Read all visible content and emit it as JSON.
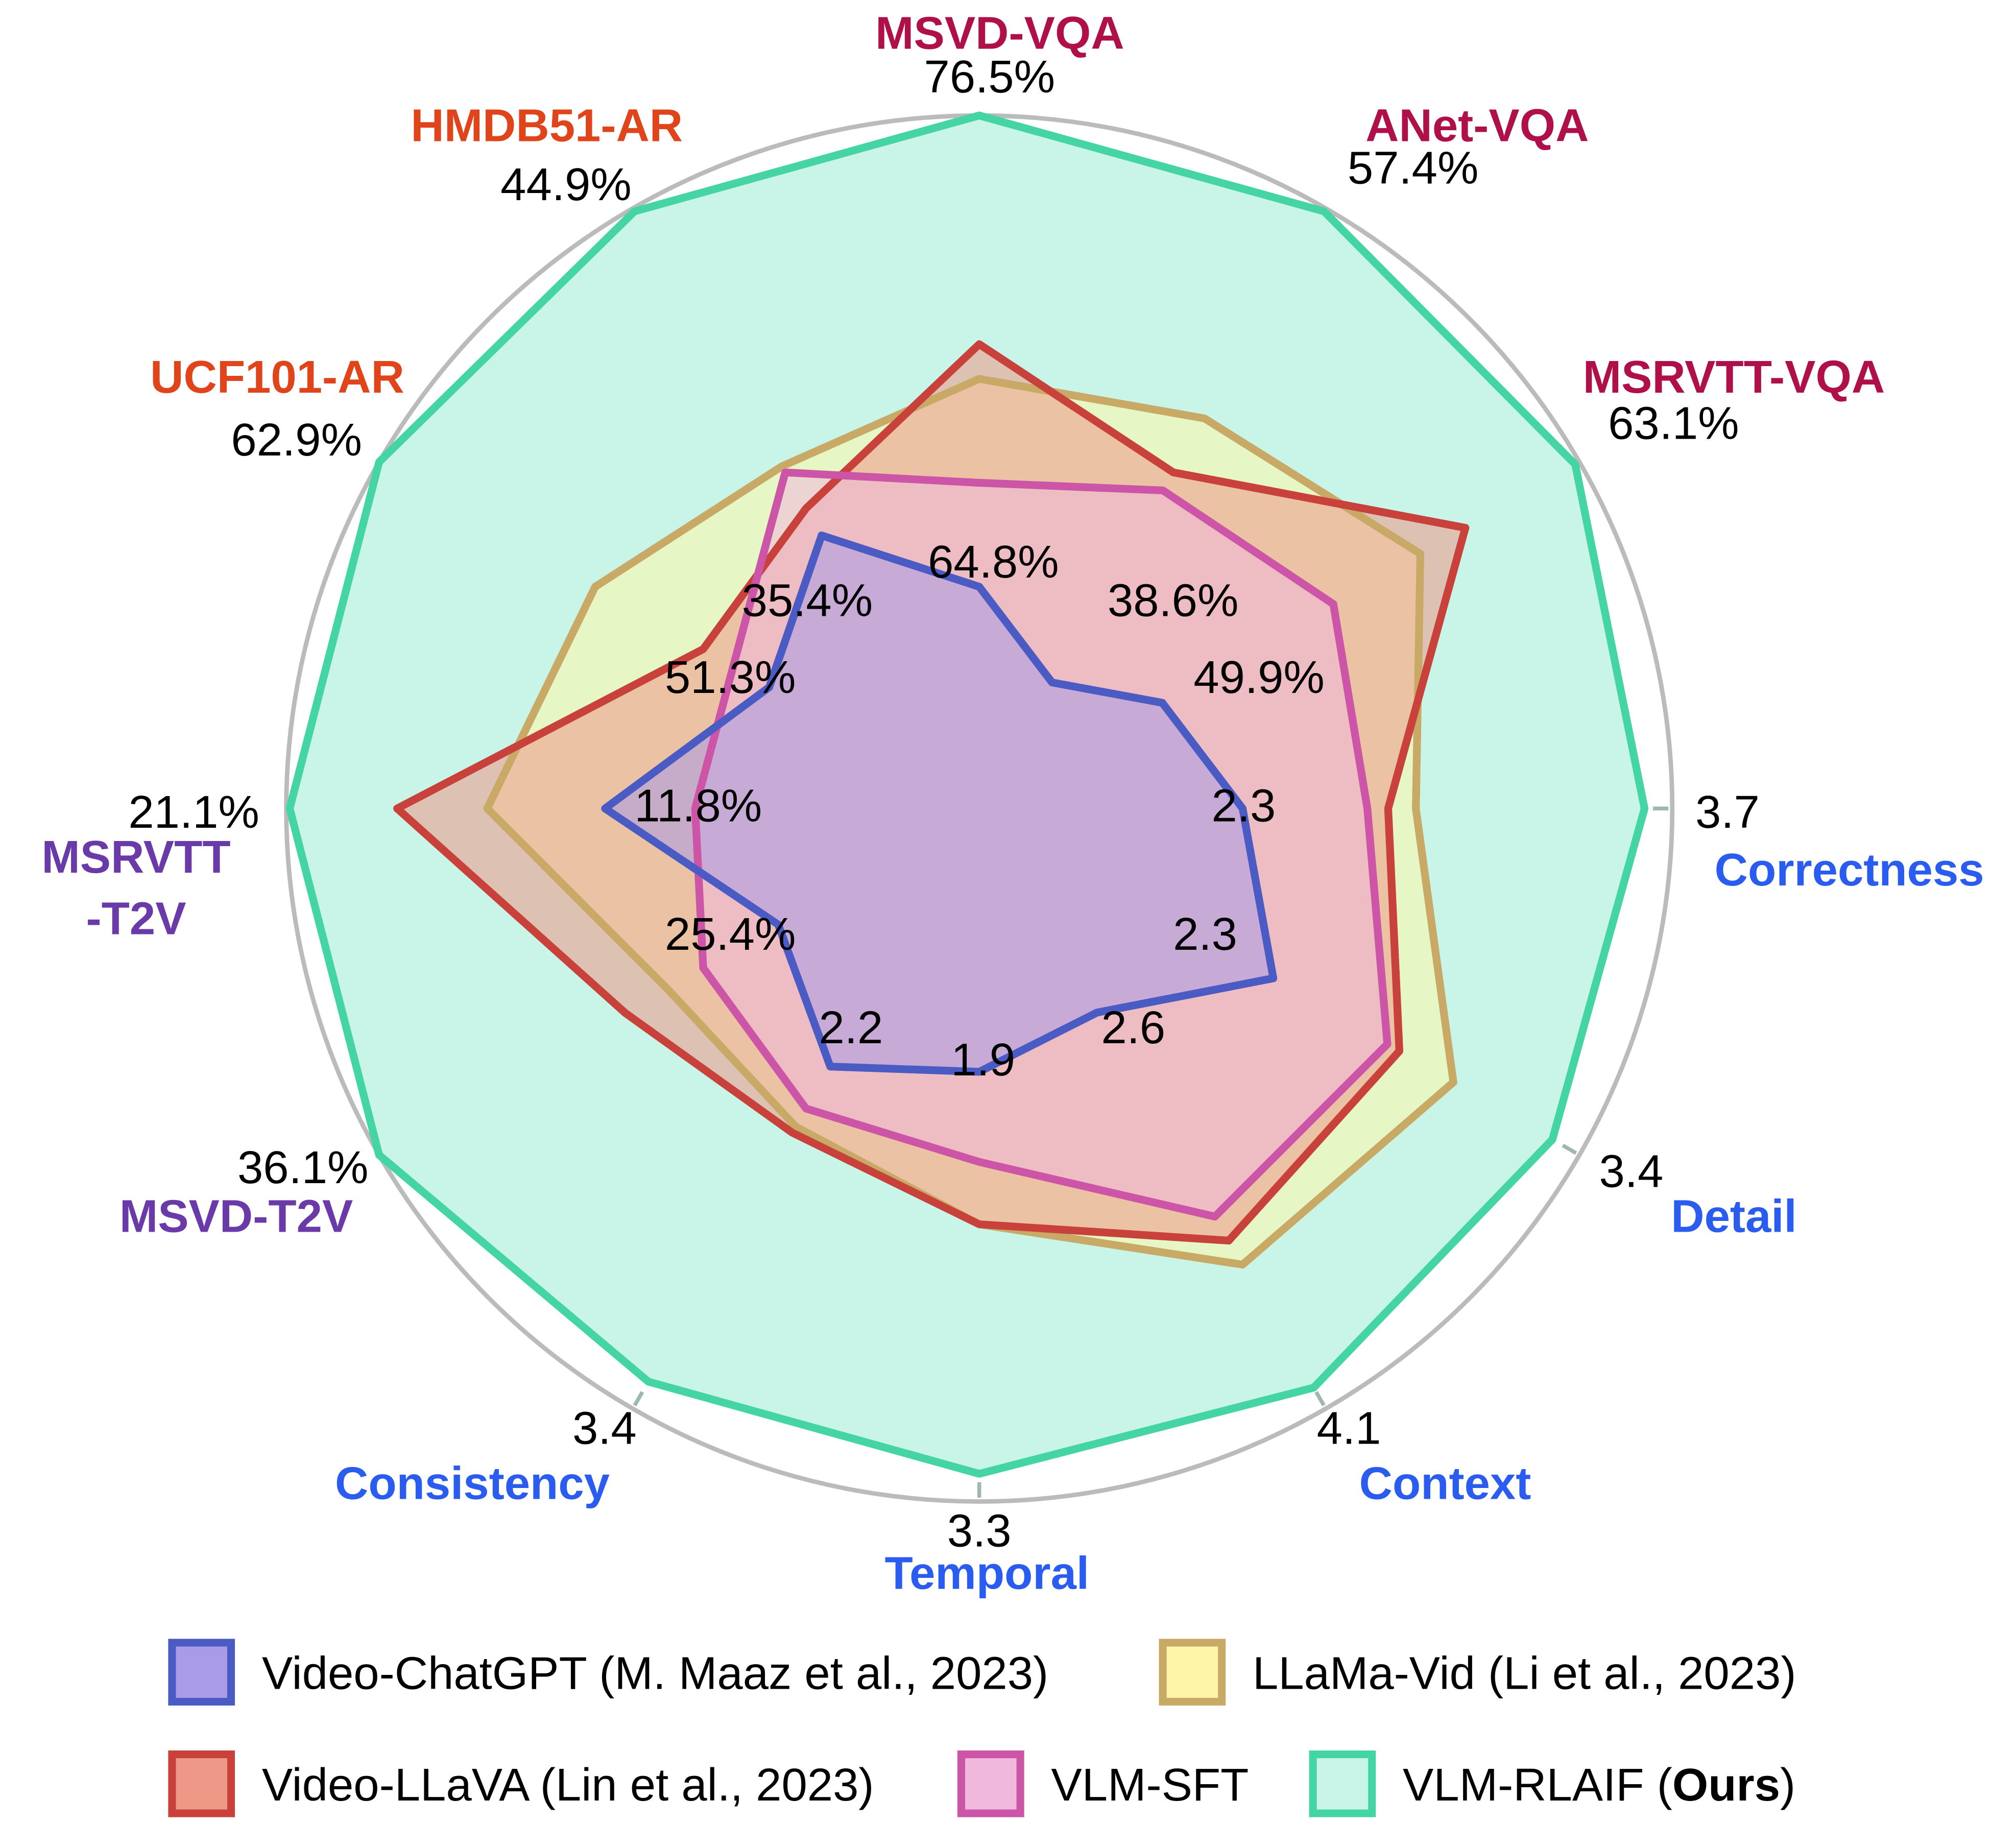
{
  "chart_data": {
    "type": "radar",
    "value_scale": "normalized radial score per axis (0 = center, 1 = outer ring)",
    "axes": [
      {
        "name": "MSVD-VQA",
        "group": "VQA",
        "max_label": "76.5%",
        "baseline_label": "64.8%"
      },
      {
        "name": "ANet-VQA",
        "group": "VQA",
        "max_label": "57.4%",
        "baseline_label": "38.6%"
      },
      {
        "name": "MSRVTT-VQA",
        "group": "VQA",
        "max_label": "63.1%",
        "baseline_label": "49.9%"
      },
      {
        "name": "Correctness",
        "group": "GPT",
        "max_label": "3.7",
        "baseline_label": "2.3"
      },
      {
        "name": "Detail",
        "group": "GPT",
        "max_label": "3.4",
        "baseline_label": "2.3"
      },
      {
        "name": "Context",
        "group": "GPT",
        "max_label": "4.1",
        "baseline_label": "2.6"
      },
      {
        "name": "Temporal",
        "group": "GPT",
        "max_label": "3.3",
        "baseline_label": "1.9"
      },
      {
        "name": "Consistency",
        "group": "GPT",
        "max_label": "3.4",
        "baseline_label": "2.2"
      },
      {
        "name": "MSVD-T2V",
        "group": "T2V",
        "max_label": "36.1%",
        "baseline_label": "25.4%"
      },
      {
        "name": "MSRVTT\n-T2V",
        "group": "T2V",
        "max_label": "21.1%",
        "baseline_label": "11.8%"
      },
      {
        "name": "UCF101-AR",
        "group": "AR",
        "max_label": "62.9%",
        "baseline_label": "51.3%"
      },
      {
        "name": "HMDB51-AR",
        "group": "AR",
        "max_label": "44.9%",
        "baseline_label": "35.4%"
      }
    ],
    "group_colors": {
      "VQA": "#b0104a",
      "AR": "#e0441a",
      "T2V": "#6a3aa8",
      "GPT": "#2a5cf0"
    },
    "series": [
      {
        "name": "VLM-RLAIF",
        "legend_label": "VLM-RLAIF (",
        "legend_bold": "Ours",
        "legend_suffix": ")",
        "stroke": "#45d5a5",
        "fill": "#c8f5e8",
        "values": [
          1.0,
          0.995,
          0.993,
          0.96,
          0.955,
          0.965,
          0.96,
          0.955,
          1.0,
          0.995,
          1.0,
          0.995
        ]
      },
      {
        "name": "LLaMa-Vid",
        "legend_label": "LLaMa-Vid (Li et al., 2023)",
        "stroke": "#c8aa66",
        "fill": "#fff5a8",
        "values": [
          0.62,
          0.65,
          0.735,
          0.63,
          0.79,
          0.76,
          0.6,
          0.53,
          0.52,
          0.71,
          0.64,
          0.57
        ]
      },
      {
        "name": "Video-LLaVA",
        "legend_label": "Video-LLaVA (Lin et al., 2023)",
        "stroke": "#c8413a",
        "fill": "#ee9888",
        "values": [
          0.67,
          0.56,
          0.81,
          0.59,
          0.7,
          0.72,
          0.6,
          0.54,
          0.59,
          0.84,
          0.46,
          0.5
        ]
      },
      {
        "name": "VLM-SFT",
        "legend_label": "VLM-SFT",
        "stroke": "#cc55a8",
        "fill": "#f0b8dc",
        "values": [
          0.47,
          0.53,
          0.59,
          0.56,
          0.68,
          0.68,
          0.51,
          0.5,
          0.46,
          0.41,
          0.41,
          0.56
        ]
      },
      {
        "name": "Video-ChatGPT",
        "legend_label": "Video-ChatGPT (M. Maaz et al., 2023)",
        "stroke": "#4a5bc4",
        "fill": "#a99be8",
        "values": [
          0.32,
          0.21,
          0.305,
          0.38,
          0.49,
          0.34,
          0.38,
          0.43,
          0.335,
          0.54,
          0.35,
          0.455
        ]
      }
    ],
    "grid_rings": [
      0.333,
      0.667,
      1.0
    ],
    "legend_placement": "bottom"
  }
}
